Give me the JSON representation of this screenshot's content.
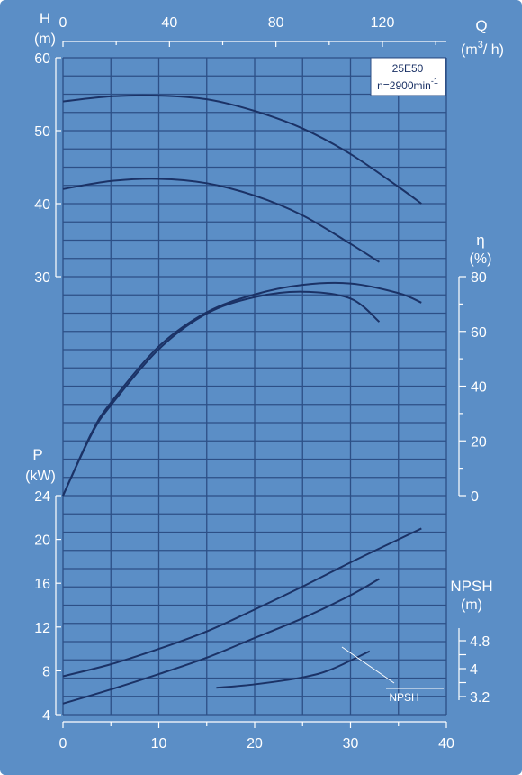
{
  "colors": {
    "background": "#5b8ec6",
    "grid": "#2d4f86",
    "curve": "#1b3266",
    "frame": "#ffffff",
    "text": "#ffffff",
    "box_bg": "#ffffff",
    "box_text": "#1b3266"
  },
  "legend": {
    "model": "25E50",
    "speed": "n=2900min",
    "speed_exp": "-1"
  },
  "axes": {
    "H": {
      "label": "H",
      "unit": "(m)",
      "ticks": [
        30,
        40,
        50,
        60
      ],
      "range": [
        30,
        60
      ]
    },
    "Q": {
      "label": "Q",
      "unit_pre": "(m",
      "unit_exp": "3",
      "unit_post": "/ h)",
      "ticks": [
        0,
        40,
        80,
        120
      ],
      "range": [
        0,
        144
      ]
    },
    "eta": {
      "label": "η",
      "unit": "(%)",
      "ticks": [
        0,
        20,
        40,
        60,
        80
      ],
      "range": [
        0,
        80
      ]
    },
    "P": {
      "label": "P",
      "unit": "(kW)",
      "ticks": [
        4,
        8,
        12,
        16,
        20,
        24
      ],
      "range": [
        4,
        24
      ]
    },
    "NPSH": {
      "label": "NPSH",
      "unit": "(m)",
      "ticks": [
        3.2,
        4,
        4.8
      ],
      "range": [
        3.2,
        4.8
      ]
    },
    "x_lower": {
      "ticks": [
        0,
        10,
        20,
        30,
        40
      ],
      "range": [
        0,
        40
      ]
    }
  },
  "annotation": {
    "npsh_label": "NPSH"
  },
  "chart_data": {
    "type": "line",
    "x_unit_bottom": "0–40 (lower scale)",
    "series": [
      {
        "axis": "H",
        "x": [
          0,
          5,
          10,
          15,
          20,
          25,
          30,
          35,
          37.4
        ],
        "y": [
          54.0,
          54.7,
          54.8,
          54.3,
          52.7,
          50.3,
          46.8,
          42.3,
          40.0
        ]
      },
      {
        "axis": "H",
        "x": [
          0,
          5,
          10,
          15,
          20,
          25,
          30,
          33.0
        ],
        "y": [
          42.0,
          43.1,
          43.4,
          42.8,
          41.1,
          38.4,
          34.5,
          32.0
        ]
      },
      {
        "axis": "eta",
        "x": [
          0,
          3,
          5,
          10,
          15,
          20,
          25,
          30,
          35,
          37.4
        ],
        "y": [
          0,
          23,
          34,
          54.5,
          67,
          73.5,
          77,
          77.5,
          74,
          70.5
        ]
      },
      {
        "axis": "eta",
        "x": [
          0,
          3,
          5,
          10,
          15,
          20,
          25,
          30,
          33.0
        ],
        "y": [
          0,
          22.5,
          33,
          53.5,
          66.5,
          72.5,
          74.5,
          72,
          63.5
        ]
      },
      {
        "axis": "P",
        "x": [
          0,
          5,
          10,
          15,
          20,
          25,
          30,
          35,
          37.4
        ],
        "y": [
          7.5,
          8.6,
          10.0,
          11.6,
          13.6,
          15.7,
          17.9,
          20.0,
          21.0
        ]
      },
      {
        "axis": "P",
        "x": [
          0,
          5,
          10,
          15,
          20,
          25,
          30,
          33.0
        ],
        "y": [
          5.0,
          6.3,
          7.7,
          9.2,
          11.0,
          12.8,
          14.9,
          16.4
        ]
      },
      {
        "axis": "NPSH",
        "x": [
          16,
          20,
          25,
          28,
          32
        ],
        "y": [
          3.45,
          3.55,
          3.75,
          3.98,
          4.5
        ]
      }
    ]
  }
}
